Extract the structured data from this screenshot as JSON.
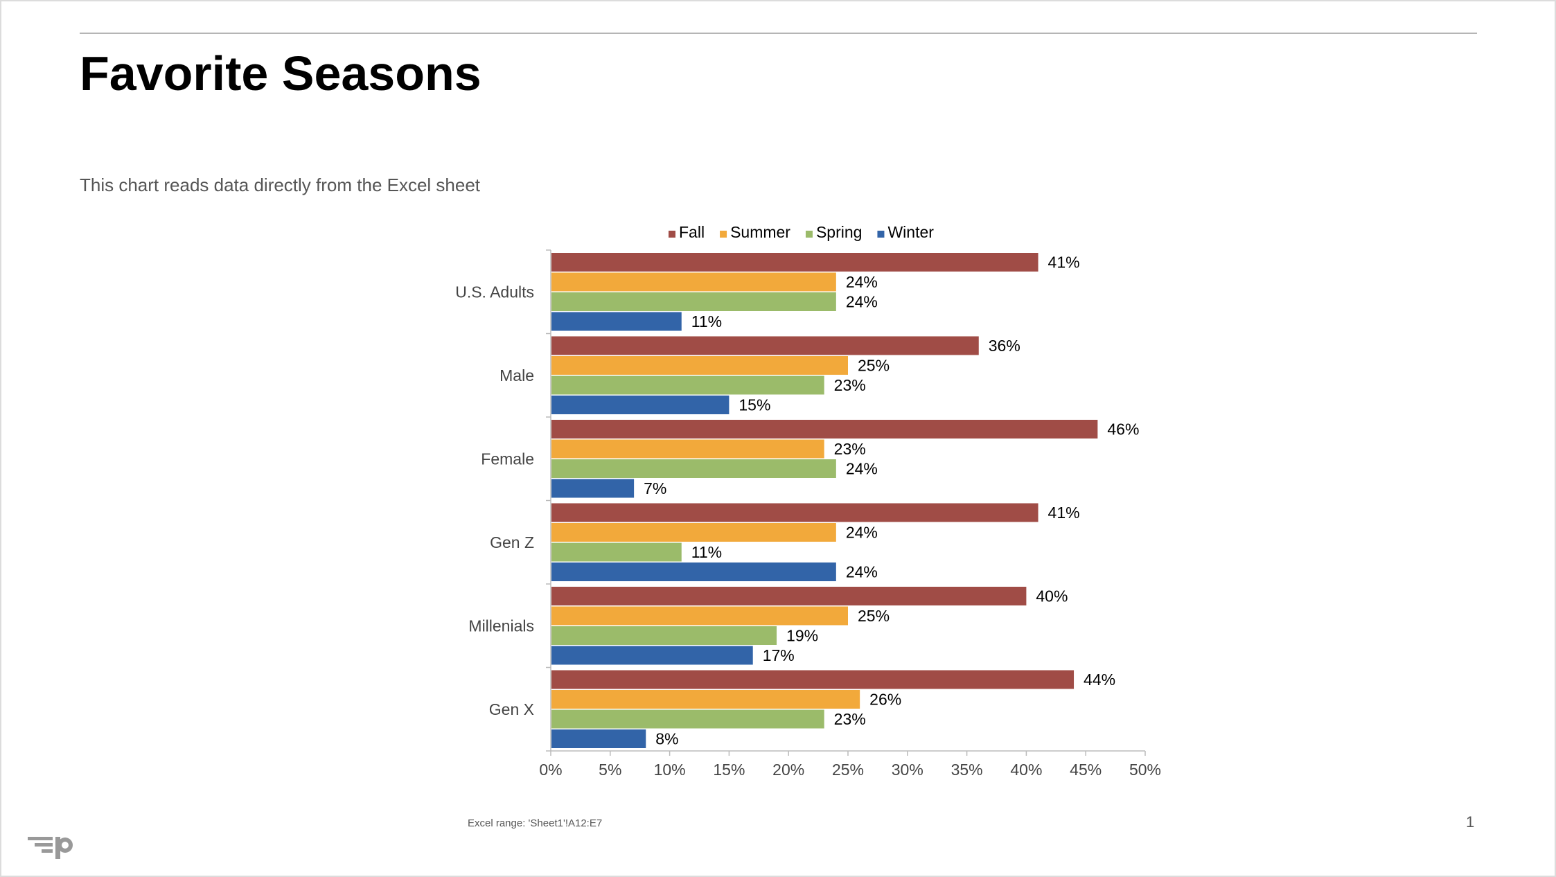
{
  "slide": {
    "title": "Favorite Seasons",
    "subtitle": "This chart reads data directly from the Excel sheet",
    "excel_range": "Excel range: 'Sheet1'!A12:E7",
    "page_number": "1"
  },
  "chart_data": {
    "type": "bar",
    "orientation": "horizontal",
    "categories": [
      "U.S. Adults",
      "Male",
      "Female",
      "Gen Z",
      "Millenials",
      "Gen X"
    ],
    "series": [
      {
        "name": "Fall",
        "color": "#a04c46",
        "values": [
          41,
          36,
          46,
          41,
          40,
          44
        ]
      },
      {
        "name": "Summer",
        "color": "#f2a93b",
        "values": [
          24,
          25,
          23,
          24,
          25,
          26
        ]
      },
      {
        "name": "Spring",
        "color": "#9bbb6a",
        "values": [
          24,
          23,
          24,
          11,
          19,
          23
        ]
      },
      {
        "name": "Winter",
        "color": "#3264a8",
        "values": [
          11,
          15,
          7,
          24,
          17,
          8
        ]
      }
    ],
    "value_format": "{v}%",
    "xlim": [
      0,
      50
    ],
    "xticks": [
      "0%",
      "5%",
      "10%",
      "15%",
      "20%",
      "25%",
      "30%",
      "35%",
      "40%",
      "45%",
      "50%"
    ],
    "legend_position": "top",
    "grid": false
  }
}
